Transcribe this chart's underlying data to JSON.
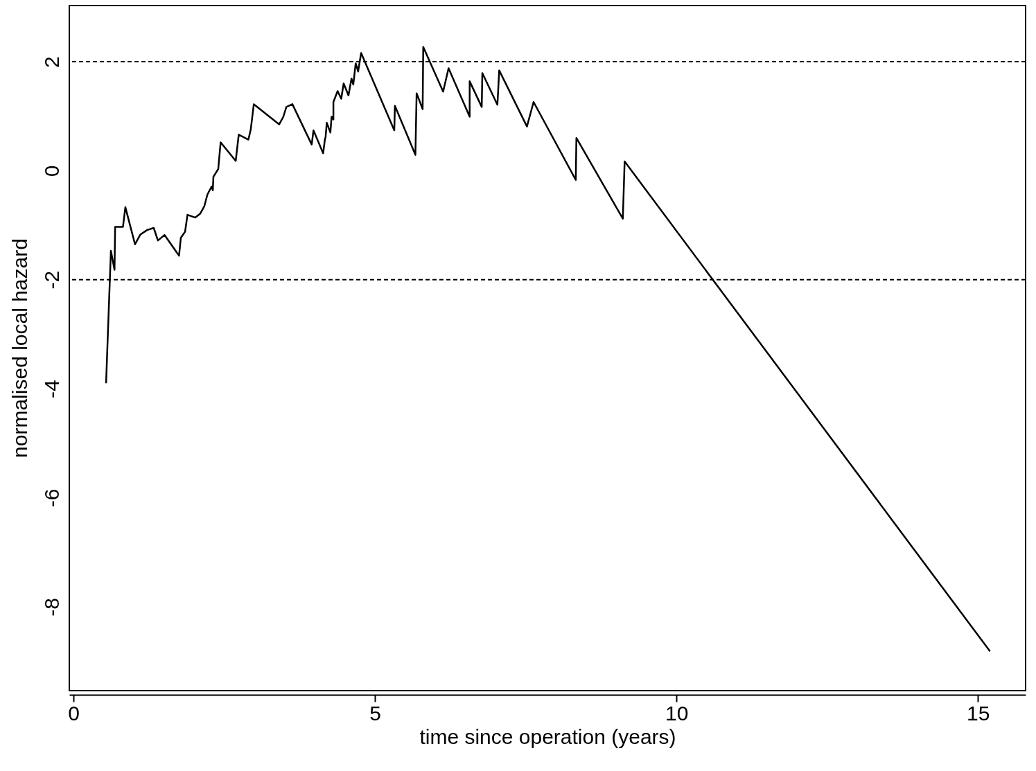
{
  "chart_data": {
    "type": "line",
    "xlabel": "time since operation (years)",
    "ylabel": "normalised local hazard",
    "x": [
      0.54,
      0.62,
      0.68,
      0.69,
      0.82,
      0.86,
      1.02,
      1.11,
      1.22,
      1.33,
      1.4,
      1.51,
      1.75,
      1.78,
      1.85,
      1.89,
      2.02,
      2.1,
      2.17,
      2.22,
      2.29,
      2.31,
      2.32,
      2.4,
      2.44,
      2.69,
      2.74,
      2.9,
      2.94,
      2.99,
      3.41,
      3.48,
      3.53,
      3.63,
      3.95,
      3.98,
      4.14,
      4.17,
      4.18,
      4.2,
      4.26,
      4.28,
      4.31,
      4.31,
      4.38,
      4.44,
      4.48,
      4.56,
      4.61,
      4.64,
      4.68,
      4.72,
      4.77,
      5.32,
      5.33,
      5.67,
      5.69,
      5.79,
      5.8,
      6.13,
      6.22,
      6.57,
      6.57,
      6.77,
      6.78,
      7.03,
      7.06,
      7.52,
      7.63,
      8.33,
      8.34,
      9.11,
      9.14,
      15.2
    ],
    "series": [
      {
        "color": "#000000",
        "values": [
          -3.9,
          -1.47,
          -1.82,
          -1.03,
          -1.03,
          -0.67,
          -1.35,
          -1.17,
          -1.09,
          -1.05,
          -1.28,
          -1.18,
          -1.56,
          -1.23,
          -1.12,
          -0.81,
          -0.86,
          -0.79,
          -0.65,
          -0.44,
          -0.29,
          -0.36,
          -0.11,
          0.03,
          0.52,
          0.18,
          0.66,
          0.57,
          0.76,
          1.22,
          0.85,
          0.99,
          1.17,
          1.22,
          0.48,
          0.74,
          0.32,
          0.58,
          0.61,
          0.88,
          0.7,
          0.99,
          0.94,
          1.26,
          1.46,
          1.32,
          1.6,
          1.38,
          1.69,
          1.58,
          1.97,
          1.82,
          2.16,
          0.74,
          1.19,
          0.29,
          1.42,
          1.13,
          2.27,
          1.45,
          1.88,
          0.99,
          1.64,
          1.17,
          1.79,
          1.21,
          1.84,
          0.81,
          1.26,
          -0.17,
          0.6,
          -0.88,
          0.17,
          -8.82
        ]
      }
    ],
    "xlim": [
      -0.07,
      15.79
    ],
    "ylim": [
      -9.54,
      3.03
    ],
    "xticks": [
      0,
      5,
      10,
      15
    ],
    "yticks": [
      -8,
      -6,
      -4,
      -2,
      0,
      2
    ],
    "ref_lines": [
      {
        "axis": "y",
        "value": 2,
        "line_style": "dashed",
        "color": "#000000"
      },
      {
        "axis": "y",
        "value": -2,
        "line_style": "dashed",
        "color": "#000000"
      }
    ],
    "grid": false,
    "marker": "none",
    "line_style": "solid"
  }
}
